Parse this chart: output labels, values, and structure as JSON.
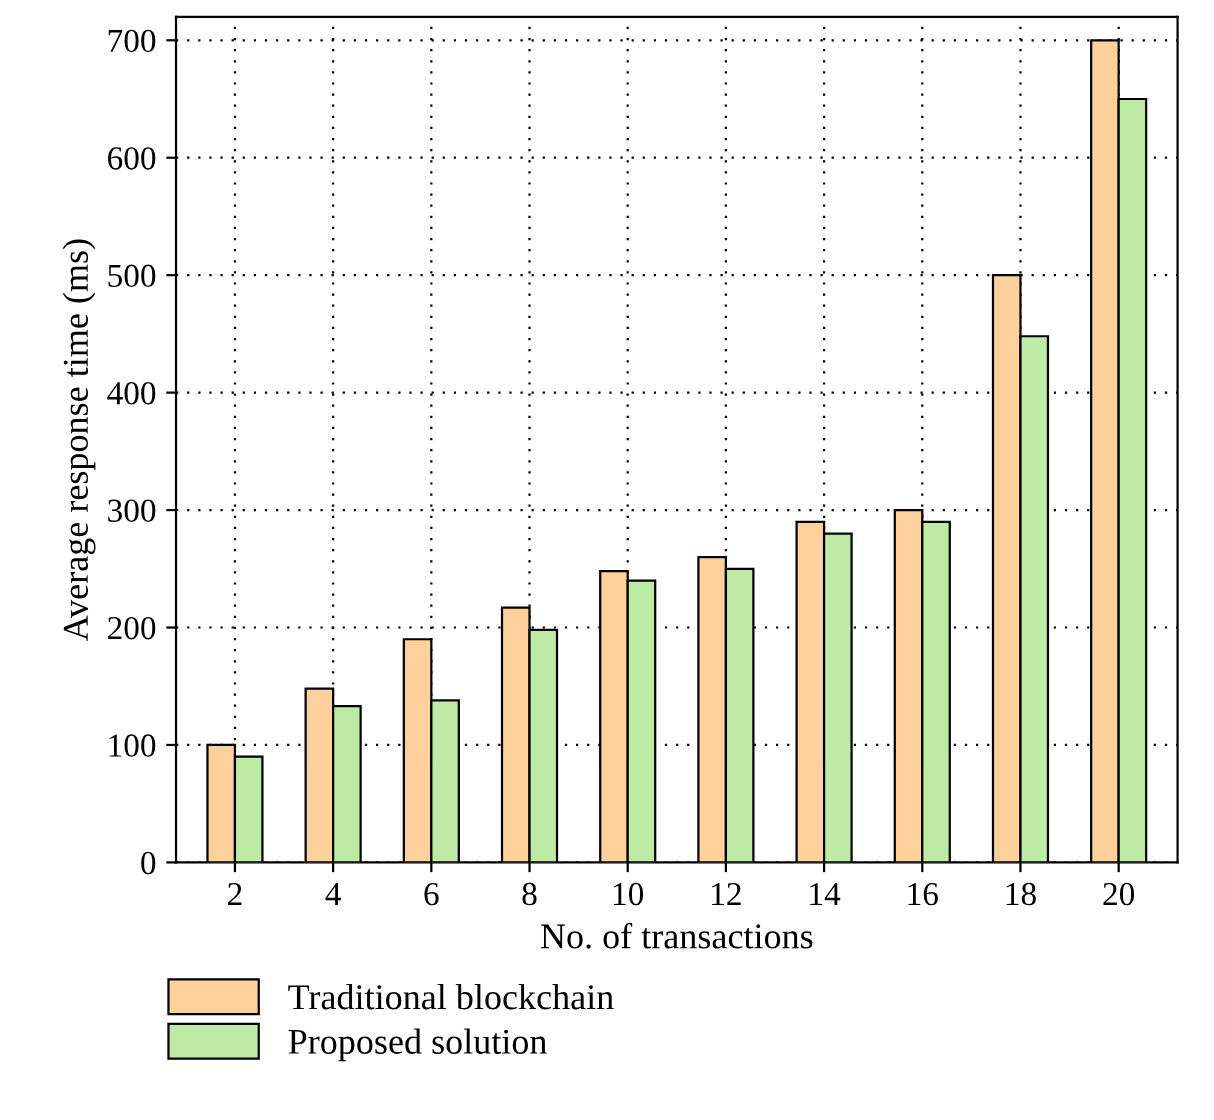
{
  "chart_data": {
    "type": "bar",
    "xlabel": "No. of transactions",
    "ylabel": "Average response time (ms)",
    "categories": [
      "2",
      "4",
      "6",
      "8",
      "10",
      "12",
      "14",
      "16",
      "18",
      "20"
    ],
    "series": [
      {
        "name": "Traditional blockchain",
        "color": "#fdd09c",
        "values": [
          100,
          148,
          190,
          217,
          248,
          260,
          290,
          300,
          500,
          700
        ]
      },
      {
        "name": "Proposed solution",
        "color": "#bdeaa4",
        "values": [
          90,
          133,
          138,
          198,
          240,
          250,
          280,
          290,
          448,
          650
        ]
      }
    ],
    "ylim": [
      0,
      720
    ],
    "yticks": [
      0,
      100,
      200,
      300,
      400,
      500,
      600,
      700
    ],
    "grid": true,
    "legend": "bottom"
  }
}
